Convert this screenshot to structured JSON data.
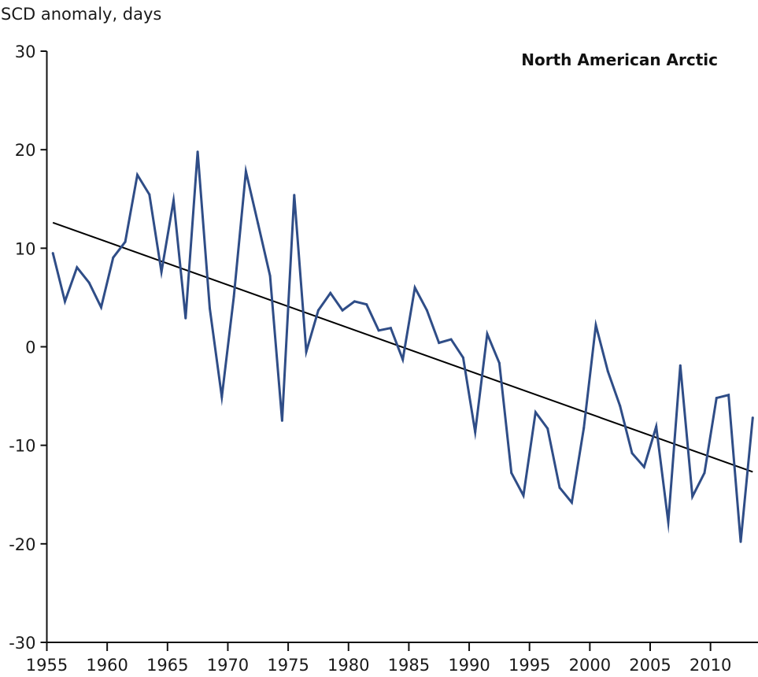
{
  "chart_data": {
    "type": "line",
    "title": "North American Arctic",
    "xlabel": "",
    "ylabel": "SCD anomaly, days",
    "xlim": [
      1955,
      2014
    ],
    "ylim": [
      -30,
      30
    ],
    "grid": false,
    "x_ticks": [
      1955,
      1960,
      1965,
      1970,
      1975,
      1980,
      1985,
      1990,
      1995,
      2000,
      2005,
      2010
    ],
    "x_tick_labels": [
      "1955",
      "1960",
      "1965",
      "1970",
      "1975",
      "1980",
      "1985",
      "1990",
      "1995",
      "2000",
      "2005",
      "2010"
    ],
    "y_ticks": [
      30,
      20,
      10,
      0,
      -10,
      -20,
      -30
    ],
    "y_tick_labels": [
      "30",
      "20",
      "10",
      "0",
      "-10",
      "-20",
      "-30"
    ],
    "x": [
      1955.5,
      1956.5,
      1957.5,
      1958.5,
      1959.5,
      1960.5,
      1961.5,
      1962.5,
      1963.5,
      1964.5,
      1965.5,
      1966.5,
      1967.5,
      1968.5,
      1969.5,
      1970.5,
      1971.5,
      1972.5,
      1973.5,
      1974.5,
      1975.5,
      1976.5,
      1977.5,
      1978.5,
      1979.5,
      1980.5,
      1981.5,
      1982.5,
      1983.5,
      1984.5,
      1985.5,
      1986.5,
      1987.5,
      1988.5,
      1989.5,
      1990.5,
      1991.5,
      1992.5,
      1993.5,
      1994.5,
      1995.5,
      1996.5,
      1997.5,
      1998.5,
      1999.5,
      2000.5,
      2001.5,
      2002.5,
      2003.5,
      2004.5,
      2005.5,
      2006.5,
      2007.5,
      2008.5,
      2009.5,
      2010.5,
      2011.5,
      2012.5,
      2013.5
    ],
    "series": [
      {
        "name": "SCD anomaly",
        "color": "#2f4d87",
        "values": [
          9.5,
          4.6,
          8.05,
          6.5,
          4.0,
          9.05,
          10.65,
          17.45,
          15.45,
          7.6,
          14.85,
          2.9,
          19.8,
          3.9,
          -5.1,
          5.1,
          17.8,
          12.5,
          7.2,
          -7.5,
          15.4,
          -0.5,
          3.7,
          5.45,
          3.7,
          4.6,
          4.3,
          1.65,
          1.9,
          -1.3,
          6.0,
          3.7,
          0.4,
          0.75,
          -1.1,
          -8.65,
          1.3,
          -1.65,
          -12.8,
          -15.1,
          -6.65,
          -8.3,
          -14.3,
          -15.8,
          -8.25,
          2.2,
          -2.5,
          -6.0,
          -10.8,
          -12.2,
          -8.1,
          -17.8,
          -1.9,
          -15.2,
          -12.8,
          -5.2,
          -4.9,
          -19.8,
          -7.2
        ]
      }
    ],
    "trend": {
      "name": "Linear trend",
      "color": "#000000",
      "x": [
        1955.5,
        2013.5
      ],
      "values": [
        12.6,
        -12.7
      ]
    }
  }
}
